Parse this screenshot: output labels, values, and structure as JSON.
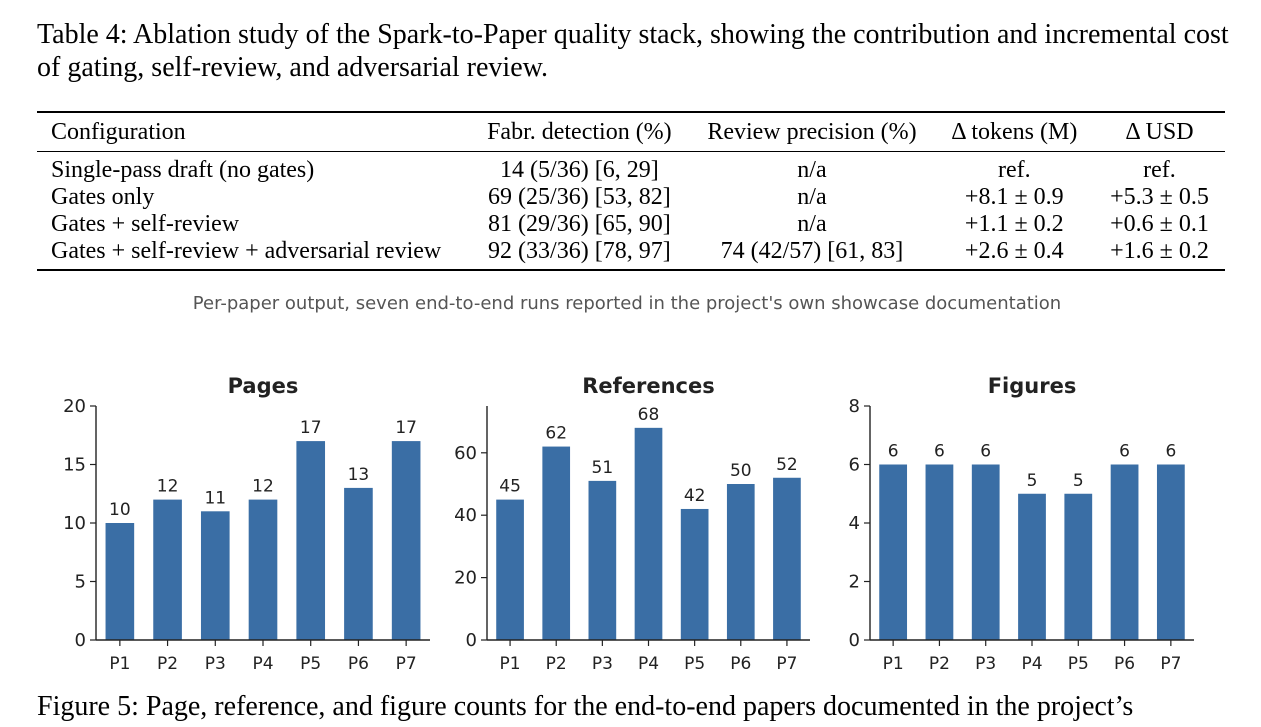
{
  "table": {
    "caption": "Table 4: Ablation study of the Spark-to-Paper quality stack, showing the contribution and incremental cost of gating, self-review, and adversarial review.",
    "headers": [
      "Configuration",
      "Fabr. detection (%)",
      "Review precision (%)",
      "Δ tokens (M)",
      "Δ USD"
    ],
    "rows": [
      [
        "Single-pass draft (no gates)",
        "14 (5/36) [6, 29]",
        "n/a",
        "ref.",
        "ref."
      ],
      [
        "Gates only",
        "69 (25/36) [53, 82]",
        "n/a",
        "+8.1 ± 0.9",
        "+5.3 ± 0.5"
      ],
      [
        "Gates + self-review",
        "81 (29/36) [65, 90]",
        "n/a",
        "+1.1 ± 0.2",
        "+0.6 ± 0.1"
      ],
      [
        "Gates + self-review + adversarial review",
        "92 (33/36) [78, 97]",
        "74 (42/57) [61, 83]",
        "+2.6 ± 0.4",
        "+1.6 ± 0.2"
      ]
    ]
  },
  "figure": {
    "suptitle": "Per-paper output, seven end-to-end runs reported in the project's own showcase documentation",
    "caption": "Figure 5: Page, reference, and figure counts for the end-to-end papers documented in the project’s",
    "bar_color": "#3a6ea5"
  },
  "chart_data": [
    {
      "type": "bar",
      "title": "Pages",
      "categories": [
        "P1",
        "P2",
        "P3",
        "P4",
        "P5",
        "P6",
        "P7"
      ],
      "values": [
        10,
        12,
        11,
        12,
        17,
        13,
        17
      ],
      "ylim": [
        0,
        20
      ],
      "yticks": [
        0,
        5,
        10,
        15,
        20
      ],
      "xlabel": "",
      "ylabel": ""
    },
    {
      "type": "bar",
      "title": "References",
      "categories": [
        "P1",
        "P2",
        "P3",
        "P4",
        "P5",
        "P6",
        "P7"
      ],
      "values": [
        45,
        62,
        51,
        68,
        42,
        50,
        52
      ],
      "ylim": [
        0,
        75
      ],
      "yticks": [
        0,
        20,
        40,
        60
      ],
      "xlabel": "",
      "ylabel": ""
    },
    {
      "type": "bar",
      "title": "Figures",
      "categories": [
        "P1",
        "P2",
        "P3",
        "P4",
        "P5",
        "P6",
        "P7"
      ],
      "values": [
        6,
        6,
        6,
        5,
        5,
        6,
        6
      ],
      "ylim": [
        0,
        8
      ],
      "yticks": [
        0,
        2,
        4,
        6,
        8
      ],
      "xlabel": "",
      "ylabel": ""
    }
  ]
}
